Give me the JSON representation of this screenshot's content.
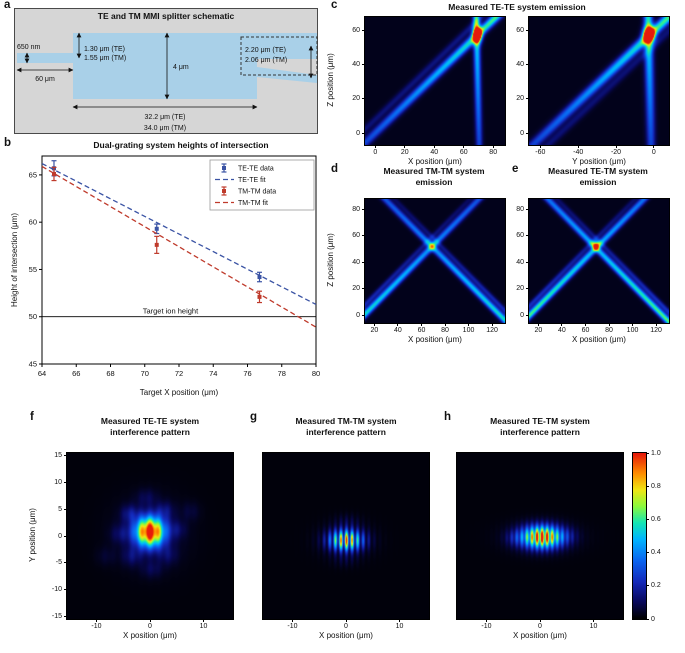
{
  "colors": {
    "te_blue": "#3a53a4",
    "tm_red": "#bf3a2b",
    "waveguide": "#a9d0e8",
    "schematic_bg": "#d6d6d6"
  },
  "colormap": {
    "stops": [
      [
        0,
        0,
        0,
        0
      ],
      [
        0.1,
        8,
        8,
        90
      ],
      [
        0.22,
        20,
        40,
        185
      ],
      [
        0.35,
        10,
        100,
        240
      ],
      [
        0.48,
        0,
        180,
        255
      ],
      [
        0.58,
        20,
        230,
        180
      ],
      [
        0.68,
        140,
        250,
        60
      ],
      [
        0.78,
        240,
        230,
        20
      ],
      [
        0.88,
        255,
        140,
        0
      ],
      [
        1,
        230,
        25,
        10
      ]
    ]
  },
  "panels": {
    "a": {
      "label": "a",
      "title": "TE and TM MMI splitter schematic",
      "dims": {
        "input_height": "650 nm",
        "input_length": "60 μm",
        "offset_te": "1.30 μm (TE)",
        "offset_tm": "1.55 μm (TM)",
        "mmi_height": "4 μm",
        "out_sep_te": "2.20 μm (TE)",
        "out_sep_tm": "2.06 μm (TM)",
        "length_te": "32.2 μm (TE)",
        "length_tm": "34.0 μm (TM)"
      }
    },
    "b": {
      "label": "b",
      "title": "Dual-grating system heights of intersection"
    },
    "c": {
      "label": "c",
      "title": "Measured TE-TE system emission"
    },
    "d": {
      "label": "d",
      "title": "Measured TM-TM system emission"
    },
    "e": {
      "label": "e",
      "title": "Measured TE-TM system emission"
    },
    "f": {
      "label": "f",
      "title": "Measured TE-TE system interference pattern"
    },
    "g": {
      "label": "g",
      "title": "Measured TM-TM system interference pattern"
    },
    "h": {
      "label": "h",
      "title": "Measured TE-TM system interference pattern"
    }
  },
  "chart_data": [
    {
      "id": "panel-b",
      "container": "panel-b",
      "type": "scatter",
      "panel": "b",
      "title": "Dual-grating system heights of intersection",
      "xlabel": "Target X position (μm)",
      "ylabel": "Height of intersection (μm)",
      "xlim": [
        64,
        80
      ],
      "ylim": [
        45,
        67
      ],
      "xticks": [
        64,
        66,
        68,
        70,
        72,
        74,
        76,
        78,
        80
      ],
      "yticks": [
        45,
        50,
        55,
        60,
        65
      ],
      "series": [
        {
          "name": "TE-TE data",
          "style": "errorbar",
          "color": "#3a53a4",
          "x": [
            64.7,
            70.7,
            76.7
          ],
          "y": [
            65.7,
            59.3,
            54.2
          ],
          "yerr": [
            0.8,
            0.5,
            0.5
          ]
        },
        {
          "name": "TE-TE fit",
          "style": "dashed-line",
          "color": "#3a53a4",
          "x": [
            64,
            80
          ],
          "y": [
            66.2,
            51.3
          ]
        },
        {
          "name": "TM-TM data",
          "style": "errorbar",
          "color": "#bf3a2b",
          "x": [
            64.7,
            70.7,
            76.7
          ],
          "y": [
            65.1,
            57.6,
            52.1
          ],
          "yerr": [
            0.7,
            0.9,
            0.6
          ]
        },
        {
          "name": "TM-TM fit",
          "style": "dashed-line",
          "color": "#bf3a2b",
          "x": [
            64,
            80
          ],
          "y": [
            65.9,
            48.9
          ]
        }
      ],
      "annotations": [
        {
          "text": "Target ion height",
          "y": 50,
          "label_x": 71.5
        }
      ],
      "legend_position": "top-right"
    },
    {
      "id": "c1",
      "container": "hm-c1",
      "type": "heatmap",
      "panel": "c",
      "xlabel": "X position (μm)",
      "ylabel": "Z position (μm)",
      "xlim": [
        -7,
        88
      ],
      "ylim": [
        -7,
        68
      ],
      "xticks": [
        0,
        20,
        40,
        60,
        80
      ],
      "yticks": [
        0,
        20,
        40,
        60
      ],
      "base": 0.03,
      "beams": [
        {
          "x0": -8.5,
          "y0": -7,
          "x1": 82,
          "y1": 68,
          "w": 1.8,
          "a0": 0.25,
          "a1": 0.6
        },
        {
          "x0": -18,
          "y0": -7,
          "x1": 72,
          "y1": 68,
          "w": 1.5,
          "a0": 0.1,
          "a1": 0.12
        },
        {
          "x0": 70.5,
          "y0": -7,
          "x1": 68.5,
          "y1": 68,
          "w": 1.6,
          "a0": 0.25,
          "a1": 0.55
        }
      ],
      "hotspot": {
        "x": 69.3,
        "y": 57.5,
        "sx": 2.0,
        "sy": 3.0,
        "a": 1.2
      }
    },
    {
      "id": "c2",
      "container": "hm-c2",
      "type": "heatmap",
      "panel": "c",
      "xlabel": "Y position (μm)",
      "ylabel": null,
      "xlim": [
        -66,
        8
      ],
      "ylim": [
        -7,
        68
      ],
      "xticks": [
        -60,
        -40,
        -20,
        0
      ],
      "yticks": [
        0,
        20,
        40,
        60
      ],
      "base": 0.03,
      "beams": [
        {
          "x0": -64,
          "y0": -7,
          "x1": 8,
          "y1": 68,
          "w": 1.8,
          "a0": 0.25,
          "a1": 0.6
        },
        {
          "x0": -56,
          "y0": -7,
          "x1": 16,
          "y1": 68,
          "w": 1.5,
          "a0": 0.1,
          "a1": 0.1
        },
        {
          "x0": -1.5,
          "y0": -7,
          "x1": -3,
          "y1": 68,
          "w": 1.6,
          "a0": 0.25,
          "a1": 0.55
        }
      ],
      "hotspot": {
        "x": -2.6,
        "y": 57.5,
        "sx": 2.0,
        "sy": 3.0,
        "a": 1.2
      }
    },
    {
      "id": "d",
      "container": "hm-d",
      "type": "heatmap",
      "panel": "d",
      "xlabel": "X position (μm)",
      "ylabel": "Z position (μm)",
      "xlim": [
        12,
        131
      ],
      "ylim": [
        -6,
        88
      ],
      "xticks": [
        20,
        40,
        60,
        80,
        100,
        120
      ],
      "yticks": [
        0,
        20,
        40,
        60,
        80
      ],
      "base": 0.03,
      "beams": [
        {
          "x0": 4.6,
          "y0": -6,
          "x1": 109,
          "y1": 88,
          "w": 1.8,
          "a0": 0.55,
          "a1": 0.28
        },
        {
          "x0": 133.4,
          "y0": -6,
          "x1": 29,
          "y1": 88,
          "w": 1.8,
          "a0": 0.55,
          "a1": 0.28
        },
        {
          "x0": -3.4,
          "y0": -6,
          "x1": 101,
          "y1": 88,
          "w": 1.4,
          "a0": 0.2,
          "a1": 0.07
        },
        {
          "x0": 141.4,
          "y0": -6,
          "x1": 37,
          "y1": 88,
          "w": 1.4,
          "a0": 0.2,
          "a1": 0.07
        }
      ],
      "hotspot": {
        "x": 69,
        "y": 52,
        "sx": 2.4,
        "sy": 2.4,
        "a": 0.15
      }
    },
    {
      "id": "e",
      "container": "hm-e",
      "type": "heatmap",
      "panel": "e",
      "xlabel": "X position (μm)",
      "ylabel": null,
      "xlim": [
        12,
        131
      ],
      "ylim": [
        -6,
        88
      ],
      "xticks": [
        20,
        40,
        60,
        80,
        100,
        120
      ],
      "yticks": [
        0,
        20,
        40,
        60,
        80
      ],
      "base": 0.03,
      "beams": [
        {
          "x0": 6,
          "y0": -6,
          "x1": 110,
          "y1": 88,
          "w": 1.8,
          "a0": 0.62,
          "a1": 0.34
        },
        {
          "x0": 132,
          "y0": -6,
          "x1": 28,
          "y1": 88,
          "w": 1.8,
          "a0": 0.62,
          "a1": 0.34
        },
        {
          "x0": -2,
          "y0": -6,
          "x1": 102,
          "y1": 88,
          "w": 1.4,
          "a0": 0.22,
          "a1": 0.08
        },
        {
          "x0": 140,
          "y0": -6,
          "x1": 36,
          "y1": 88,
          "w": 1.4,
          "a0": 0.22,
          "a1": 0.08
        }
      ],
      "hotspot": {
        "x": 69,
        "y": 53,
        "sx": 2.1,
        "sy": 2.1,
        "a": 0.5
      }
    },
    {
      "id": "f",
      "container": "hm-f",
      "type": "heatmap",
      "panel": "f",
      "xlabel": "X position (μm)",
      "ylabel": "Y position (μm)",
      "xlim": [
        -15.5,
        15.5
      ],
      "ylim": [
        -15.5,
        15.5
      ],
      "xticks": [
        -10,
        0,
        10
      ],
      "yticks": [
        -15,
        -10,
        -5,
        0,
        5,
        10,
        15
      ],
      "base": 0.012,
      "spots": [
        {
          "x": 0,
          "y": 0.8,
          "sx": 1.9,
          "sy": 1.9,
          "a": 1.15
        },
        {
          "x": 0,
          "y": 0.5,
          "sx": 4.5,
          "sy": 4.5,
          "a": 0.07
        },
        {
          "x": -3.8,
          "y": 4.2,
          "sx": 1.1,
          "sy": 1.1,
          "a": 0.13
        },
        {
          "x": 2.8,
          "y": 4.8,
          "sx": 1.1,
          "sy": 1.1,
          "a": 0.1
        },
        {
          "x": 5.2,
          "y": 1.2,
          "sx": 1.1,
          "sy": 1.1,
          "a": 0.08
        },
        {
          "x": -5.6,
          "y": 0.4,
          "sx": 1.2,
          "sy": 1.2,
          "a": 0.09
        },
        {
          "x": -3.4,
          "y": -3.8,
          "sx": 1.2,
          "sy": 1.2,
          "a": 0.1
        },
        {
          "x": 3.4,
          "y": -3.6,
          "sx": 1.2,
          "sy": 1.2,
          "a": 0.08
        },
        {
          "x": 0.4,
          "y": -6.2,
          "sx": 1.3,
          "sy": 1.1,
          "a": 0.07
        },
        {
          "x": -0.6,
          "y": 7.2,
          "sx": 1.3,
          "sy": 1.1,
          "a": 0.07
        },
        {
          "x": 7.6,
          "y": 4.6,
          "sx": 1.2,
          "sy": 1.2,
          "a": 0.05
        },
        {
          "x": -8.2,
          "y": -3.8,
          "sx": 1.3,
          "sy": 1.2,
          "a": 0.04
        }
      ],
      "fringe": {
        "p": 1.7,
        "c": 0.22,
        "x0": 0
      }
    },
    {
      "id": "g",
      "container": "hm-g",
      "type": "heatmap",
      "panel": "g",
      "xlabel": "X position (μm)",
      "ylabel": null,
      "xlim": [
        -15.5,
        15.5
      ],
      "ylim": [
        -15.5,
        15.5
      ],
      "xticks": [
        -10,
        0,
        10
      ],
      "yticks": null,
      "base": 0.012,
      "spots": [
        {
          "x": 0,
          "y": -0.8,
          "sx": 2.1,
          "sy": 1.3,
          "a": 0.95
        },
        {
          "x": 0,
          "y": -0.8,
          "sx": 3.6,
          "sy": 2.3,
          "a": 0.07
        },
        {
          "x": 0.2,
          "y": 2.8,
          "sx": 1.6,
          "sy": 0.9,
          "a": 0.06
        },
        {
          "x": -0.2,
          "y": -4.6,
          "sx": 1.6,
          "sy": 0.9,
          "a": 0.05
        }
      ],
      "fringe": {
        "p": 1.05,
        "c": 0.8,
        "x0": 0.1
      }
    },
    {
      "id": "h",
      "container": "hm-h",
      "type": "heatmap",
      "panel": "h",
      "xlabel": "X position (μm)",
      "ylabel": null,
      "xlim": [
        -15.5,
        15.5
      ],
      "ylim": [
        -15.5,
        15.5
      ],
      "xticks": [
        -10,
        0,
        10
      ],
      "yticks": null,
      "base": 0.012,
      "spots": [
        {
          "x": 0.4,
          "y": -0.2,
          "sx": 2.6,
          "sy": 1.4,
          "a": 1.12
        },
        {
          "x": 0.2,
          "y": -0.2,
          "sx": 5.0,
          "sy": 2.0,
          "a": 0.06
        },
        {
          "x": -4.8,
          "y": -0.4,
          "sx": 1.2,
          "sy": 1.0,
          "a": 0.1
        },
        {
          "x": 5.4,
          "y": 0.0,
          "sx": 1.2,
          "sy": 1.0,
          "a": 0.06
        }
      ],
      "fringe": {
        "p": 0.95,
        "c": 0.5,
        "x0": 0.4
      }
    },
    {
      "id": "colorbar",
      "container": "colorbar",
      "type": "colorbar",
      "ticks": [
        0,
        0.2,
        0.4,
        0.6,
        0.8,
        1.0
      ],
      "labels": [
        "0",
        "0.2",
        "0.4",
        "0.6",
        "0.8",
        "1.0"
      ]
    }
  ]
}
